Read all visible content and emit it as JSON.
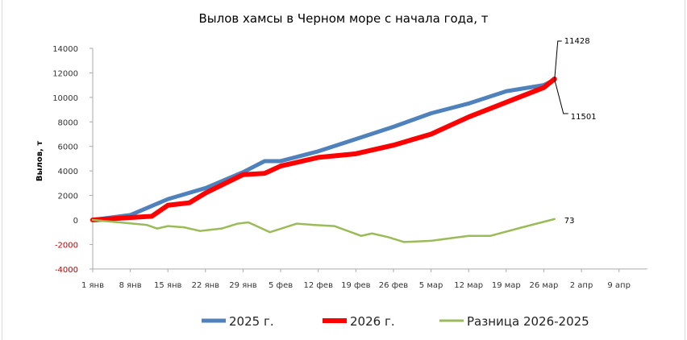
{
  "chart_data": {
    "type": "line",
    "title": "Вылов хамсы в Черном море с начала года, т",
    "ylabel": "Вылов, т",
    "xlabel": "",
    "ylim": [
      -4000,
      14000
    ],
    "yticks": [
      14000,
      12000,
      10000,
      8000,
      6000,
      4000,
      2000,
      0,
      -2000,
      -4000
    ],
    "xlim_days": [
      0,
      98
    ],
    "xticks": [
      {
        "day": 0,
        "label": "1 янв"
      },
      {
        "day": 7,
        "label": "8 янв"
      },
      {
        "day": 14,
        "label": "15 янв"
      },
      {
        "day": 21,
        "label": "22 янв"
      },
      {
        "day": 28,
        "label": "29 янв"
      },
      {
        "day": 35,
        "label": "5 фев"
      },
      {
        "day": 42,
        "label": "12 фев"
      },
      {
        "day": 49,
        "label": "19 фев"
      },
      {
        "day": 56,
        "label": "26 фев"
      },
      {
        "day": 63,
        "label": "5 мар"
      },
      {
        "day": 70,
        "label": "12 мар"
      },
      {
        "day": 77,
        "label": "19 мар"
      },
      {
        "day": 84,
        "label": "26 мар"
      },
      {
        "day": 91,
        "label": "2 апр"
      },
      {
        "day": 98,
        "label": "9 апр"
      }
    ],
    "legend_position": "bottom",
    "series": [
      {
        "name": "2025 г.",
        "color": "#4f81bd",
        "width": 5,
        "points": [
          [
            0,
            0
          ],
          [
            7,
            400
          ],
          [
            14,
            1700
          ],
          [
            21,
            2600
          ],
          [
            28,
            3900
          ],
          [
            32,
            4800
          ],
          [
            35,
            4800
          ],
          [
            42,
            5600
          ],
          [
            49,
            6600
          ],
          [
            56,
            7600
          ],
          [
            63,
            8700
          ],
          [
            70,
            9500
          ],
          [
            77,
            10500
          ],
          [
            84,
            11000
          ],
          [
            86,
            11428
          ]
        ]
      },
      {
        "name": "2026 г.",
        "color": "#ff0000",
        "width": 6,
        "points": [
          [
            0,
            0
          ],
          [
            7,
            200
          ],
          [
            11,
            300
          ],
          [
            14,
            1200
          ],
          [
            18,
            1400
          ],
          [
            21,
            2200
          ],
          [
            28,
            3700
          ],
          [
            32,
            3800
          ],
          [
            35,
            4400
          ],
          [
            42,
            5100
          ],
          [
            49,
            5400
          ],
          [
            56,
            6100
          ],
          [
            63,
            7000
          ],
          [
            70,
            8400
          ],
          [
            77,
            9600
          ],
          [
            84,
            10800
          ],
          [
            86,
            11501
          ]
        ]
      },
      {
        "name": "Разница 2026-2025",
        "color": "#9bbb59",
        "width": 2.5,
        "points": [
          [
            0,
            0
          ],
          [
            5,
            -200
          ],
          [
            10,
            -400
          ],
          [
            12,
            -700
          ],
          [
            14,
            -500
          ],
          [
            17,
            -600
          ],
          [
            20,
            -900
          ],
          [
            24,
            -700
          ],
          [
            27,
            -300
          ],
          [
            29,
            -200
          ],
          [
            33,
            -1000
          ],
          [
            38,
            -300
          ],
          [
            41,
            -400
          ],
          [
            45,
            -500
          ],
          [
            50,
            -1300
          ],
          [
            52,
            -1100
          ],
          [
            55,
            -1400
          ],
          [
            58,
            -1800
          ],
          [
            63,
            -1700
          ],
          [
            70,
            -1300
          ],
          [
            74,
            -1300
          ],
          [
            80,
            -600
          ],
          [
            86,
            73
          ]
        ]
      }
    ],
    "annotations": [
      {
        "label": "11428"
      },
      {
        "label": "11501"
      },
      {
        "label": "73"
      }
    ]
  },
  "negative_tick_color": "#c00000"
}
